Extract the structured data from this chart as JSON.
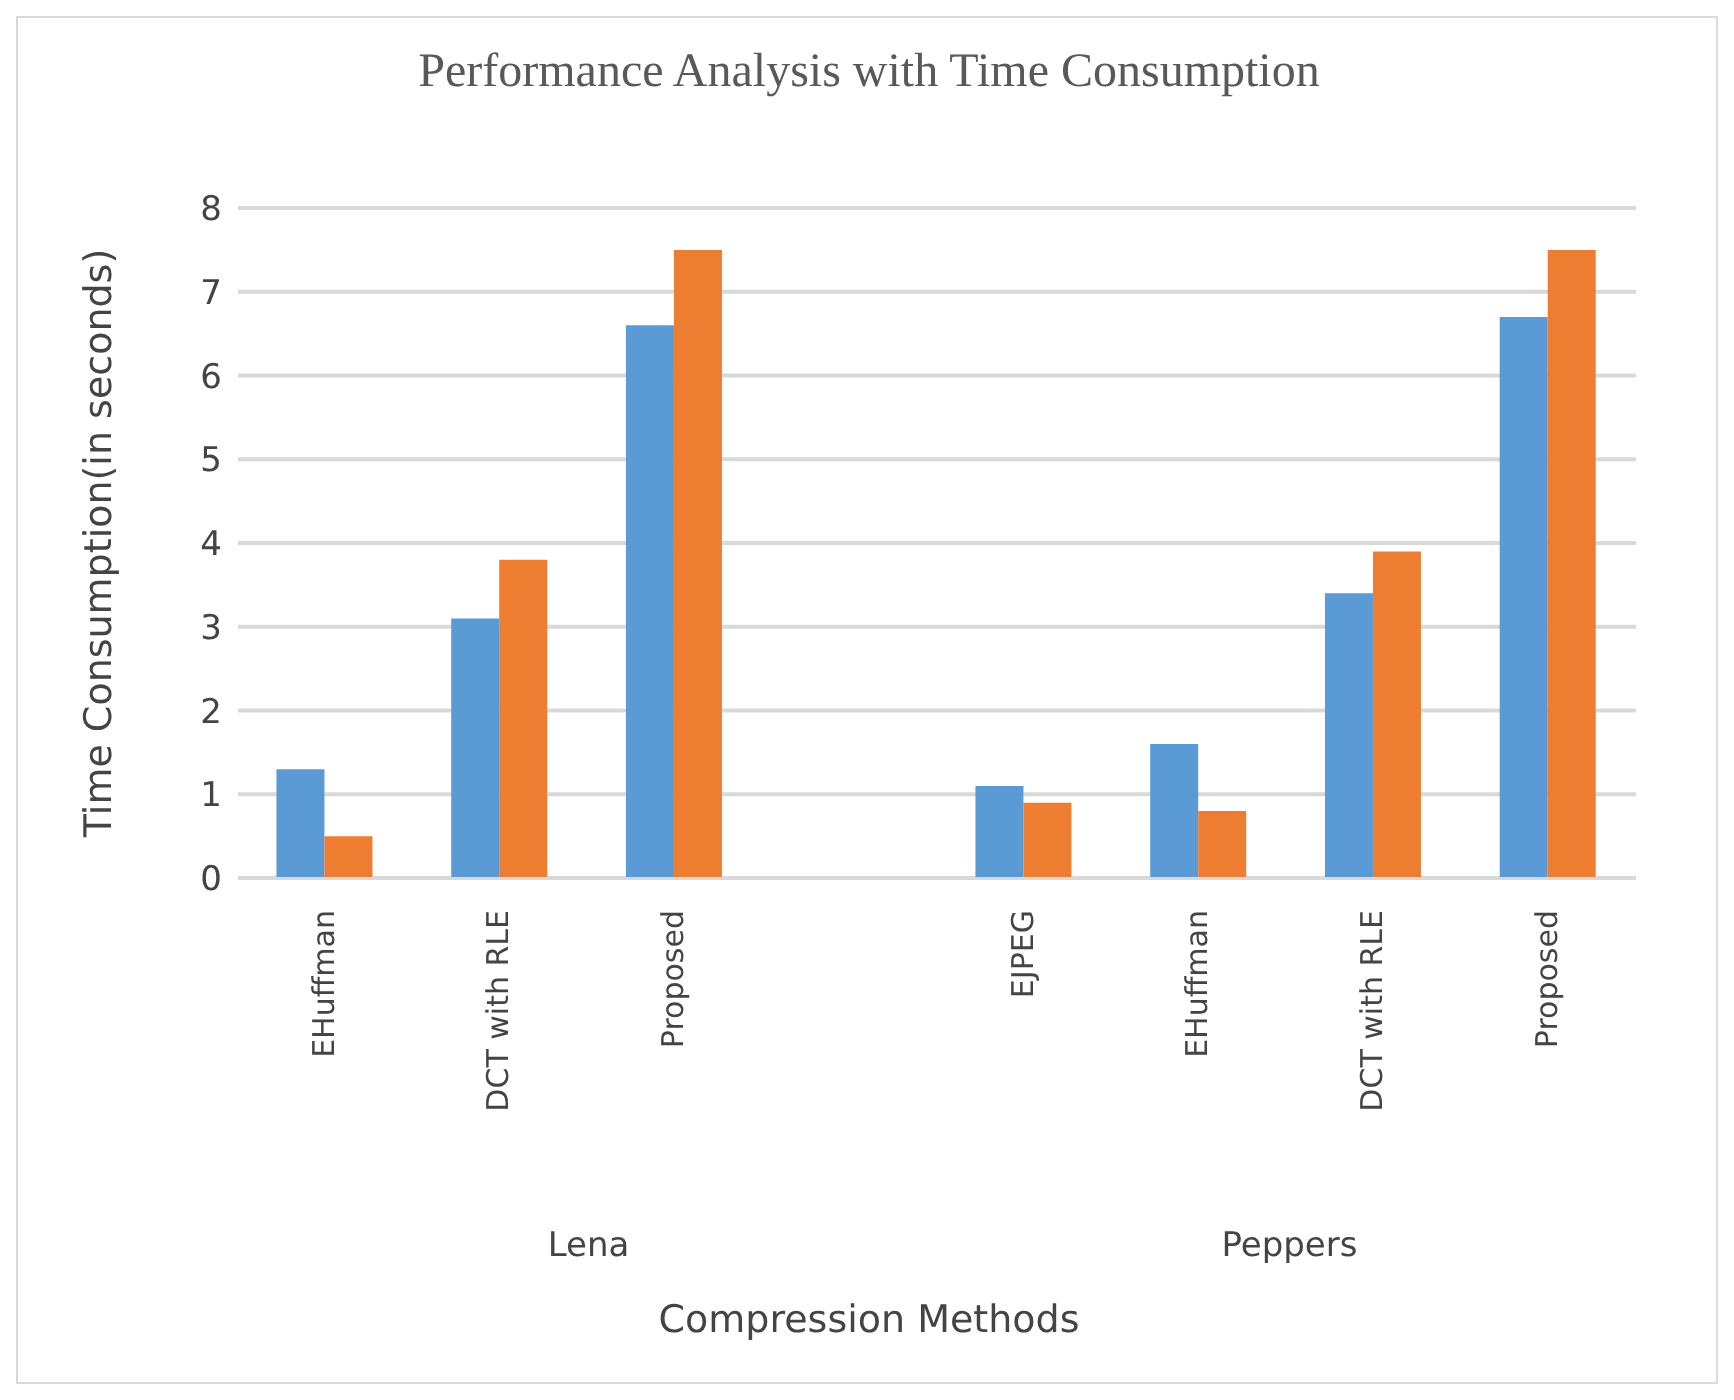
{
  "chart_data": {
    "type": "bar",
    "title": "Performance Analysis with Time Consumption",
    "xlabel": "Compression Methods",
    "ylabel": "Time Consumption(in seconds)",
    "categories": [
      "EHuffman",
      "DCT with RLE",
      "Proposed",
      null,
      "EJPEG",
      "EHuffman",
      "DCT with RLE",
      "Proposed"
    ],
    "series": [
      {
        "color": "#5b9bd5",
        "values": [
          1.3,
          3.1,
          6.6,
          0,
          1.1,
          1.6,
          3.4,
          6.7
        ]
      },
      {
        "color": "#ed7d31",
        "values": [
          0.5,
          3.8,
          7.5,
          0,
          0.9,
          0.8,
          3.9,
          7.5
        ]
      }
    ],
    "annotations": [
      "Lena",
      "Peppers"
    ],
    "ylim": [
      0,
      8
    ],
    "yticks": [
      0,
      1,
      2,
      3,
      4,
      5,
      6,
      7,
      8
    ],
    "grid": "y",
    "legend": false
  }
}
